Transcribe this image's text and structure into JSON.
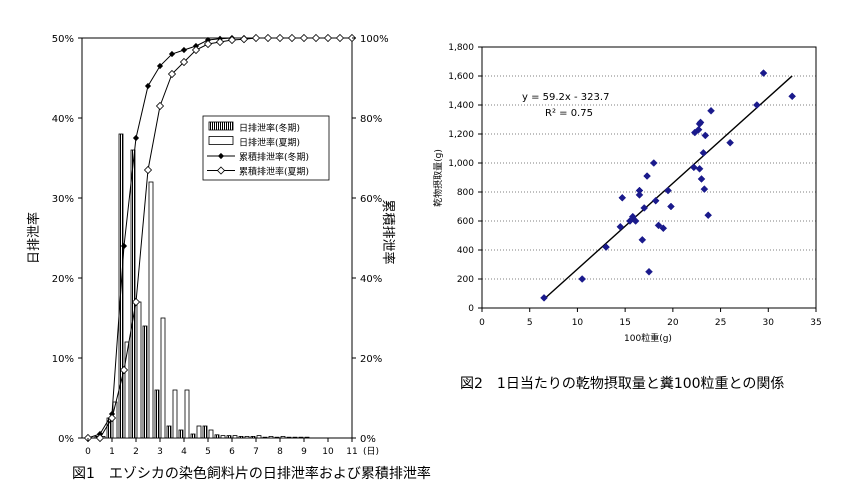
{
  "chart_data": [
    {
      "type": "bar+line",
      "caption": "図1　エゾシカの染色飼料片の日排泄率および累積排泄率",
      "ylabel_left": "日排泄率",
      "ylabel_right": "累積排泄率",
      "x_unit": "(日)",
      "xlim": [
        0,
        11
      ],
      "ylim_left": [
        0,
        50
      ],
      "ylim_right": [
        0,
        100
      ],
      "x_ticks": [
        "0",
        "1",
        "2",
        "3",
        "4",
        "5",
        "6",
        "7",
        "8",
        "9",
        "10",
        "11"
      ],
      "y_ticks_left": [
        "0%",
        "10%",
        "20%",
        "30%",
        "40%",
        "50%"
      ],
      "y_ticks_right": [
        "0%",
        "20%",
        "40%",
        "60%",
        "80%",
        "100%"
      ],
      "legend_position": "right-center",
      "bar_series": [
        {
          "name": "日排泄率(冬期)",
          "pattern": "hatched",
          "x": [
            0.5,
            1,
            1.5,
            2,
            2.5,
            3,
            3.5,
            4,
            4.5,
            5,
            5.5,
            6,
            6.5,
            7,
            7.5,
            8,
            8.5,
            9
          ],
          "values": [
            0.2,
            2.5,
            38,
            36,
            14,
            6,
            1.5,
            1.0,
            0.5,
            1.5,
            0.4,
            0.3,
            0.2,
            0.2,
            0.1,
            0.1,
            0.1,
            0.1
          ]
        },
        {
          "name": "日排泄率(夏期)",
          "pattern": "white",
          "x": [
            0.5,
            1,
            1.5,
            2,
            2.5,
            3,
            3.5,
            4,
            4.5,
            5,
            5.5,
            6,
            6.5,
            7,
            7.5,
            8,
            8.5,
            9
          ],
          "values": [
            0.2,
            4.5,
            12,
            17,
            32,
            15,
            6,
            6,
            1.5,
            1.0,
            0.3,
            0.3,
            0.2,
            0.3,
            0.2,
            0.2,
            0.1,
            0.1
          ]
        }
      ],
      "line_series": [
        {
          "name": "累積排泄率(冬期)",
          "marker": "diamond-filled",
          "x": [
            0,
            0.5,
            1,
            1.5,
            2,
            2.5,
            3,
            3.5,
            4,
            4.5,
            5,
            5.5,
            6,
            6.5,
            7,
            7.5,
            8,
            8.5,
            9,
            9.5,
            10,
            10.5,
            11
          ],
          "y": [
            0,
            1,
            6,
            48,
            75,
            88,
            93,
            96,
            97,
            98,
            99.5,
            99.8,
            100,
            100,
            100,
            100,
            100,
            100,
            100,
            100,
            100,
            100,
            100
          ]
        },
        {
          "name": "累積排泄率(夏期)",
          "marker": "diamond-open",
          "x": [
            0,
            0.5,
            1,
            1.5,
            2,
            2.5,
            3,
            3.5,
            4,
            4.5,
            5,
            5.5,
            6,
            6.5,
            7,
            7.5,
            8,
            8.5,
            9,
            9.5,
            10,
            10.5,
            11
          ],
          "y": [
            0,
            0,
            5,
            17,
            34,
            67,
            83,
            91,
            94,
            97,
            98.5,
            99,
            99.5,
            99.7,
            100,
            100,
            100,
            100,
            100,
            100,
            100,
            100,
            100
          ]
        }
      ]
    },
    {
      "type": "scatter",
      "caption": "図2　1日当たりの乾物摂取量と糞100粒重との関係",
      "xlabel": "100粒重(g)",
      "ylabel": "乾物摂取量(g)",
      "xlim": [
        0,
        35
      ],
      "ylim": [
        0,
        1800
      ],
      "x_ticks": [
        "0",
        "5",
        "10",
        "15",
        "20",
        "25",
        "30",
        "35"
      ],
      "y_ticks": [
        "0",
        "200",
        "400",
        "600",
        "800",
        "1,000",
        "1,200",
        "1,400",
        "1,600",
        "1,800"
      ],
      "grid": "horizontal dotted",
      "equation": "y = 59.2x - 323.7",
      "r2": "R² = 0.75",
      "slope": 59.2,
      "intercept": -323.7,
      "fit_x": [
        6.5,
        32.5
      ],
      "x": [
        6.5,
        10.5,
        13.0,
        14.5,
        14.7,
        15.5,
        15.8,
        16.1,
        16.5,
        16.5,
        16.8,
        17.0,
        17.3,
        17.5,
        18.0,
        18.2,
        18.5,
        19.0,
        19.5,
        19.8,
        22.2,
        22.3,
        22.7,
        22.8,
        22.8,
        22.9,
        23.0,
        23.2,
        23.3,
        23.4,
        23.7,
        24.0,
        26.0,
        28.8,
        29.5,
        32.5
      ],
      "y": [
        70,
        200,
        420,
        560,
        760,
        600,
        630,
        600,
        780,
        810,
        470,
        690,
        910,
        250,
        1000,
        740,
        570,
        550,
        810,
        700,
        970,
        1210,
        1230,
        960,
        1270,
        1280,
        890,
        1070,
        820,
        1190,
        640,
        1360,
        1140,
        1400,
        1620,
        1460
      ]
    }
  ]
}
